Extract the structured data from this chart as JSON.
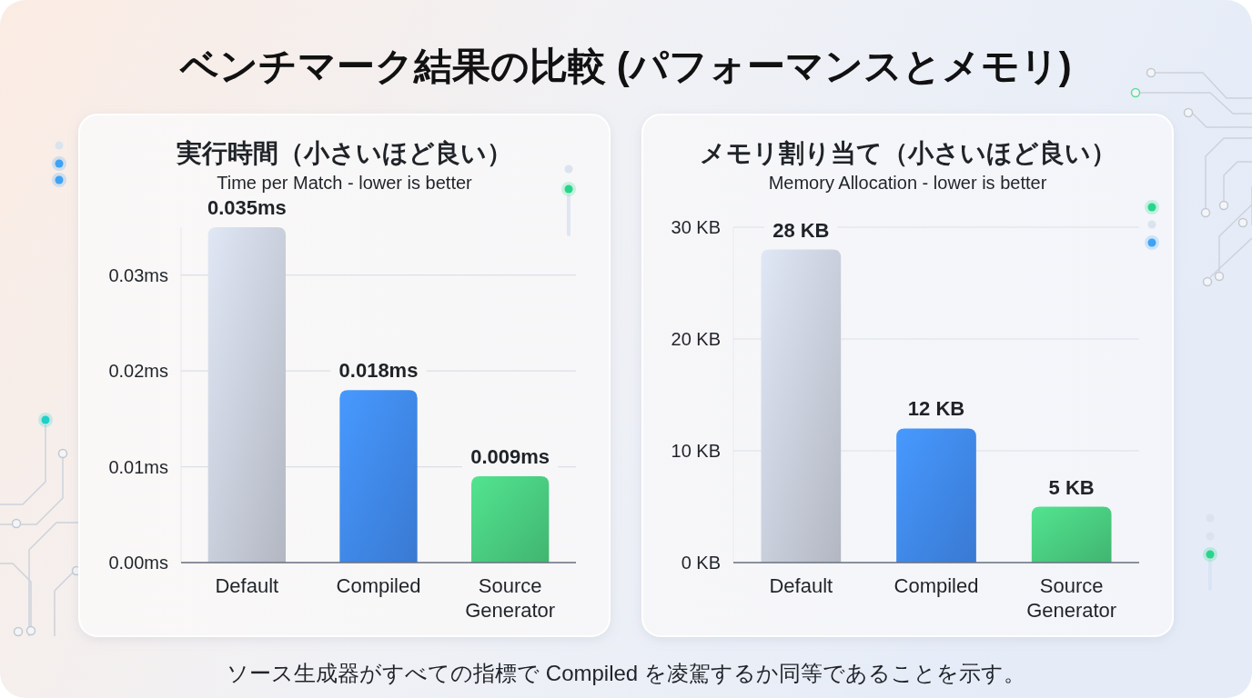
{
  "chart_data": [
    {
      "type": "other",
      "title": "ベンチマーク結果の比較 (パフォーマンスとメモリ)",
      "annotations": [
        "ソース生成器がすべての指標で Compiled を凌駕するか同等であることを示す。"
      ]
    },
    {
      "type": "bar",
      "title": "実行時間（小さいほど良い）",
      "subtitle": "Time per Match - lower is better",
      "categories": [
        "Default",
        "Compiled",
        "Source Generator"
      ],
      "values": [
        0.035,
        0.018,
        0.009
      ],
      "colors": [
        "#c6ccd8",
        "#3f87ea",
        "#48c97e"
      ],
      "value_labels": [
        "0.035ms",
        "0.018ms",
        "0.009ms"
      ],
      "ylim": [
        0,
        0.035
      ],
      "yticks": [
        {
          "value": 0,
          "label": "0.00ms"
        },
        {
          "value": 0.01,
          "label": "0.01ms"
        },
        {
          "value": 0.02,
          "label": "0.02ms"
        },
        {
          "value": 0.03,
          "label": "0.03ms"
        }
      ],
      "grid": "y"
    },
    {
      "type": "bar",
      "title": "メモリ割り当て（小さいほど良い）",
      "subtitle": "Memory Allocation - lower is better",
      "categories": [
        "Default",
        "Compiled",
        "Source Generator"
      ],
      "values": [
        28,
        12,
        5
      ],
      "colors": [
        "#c6ccd8",
        "#3f87ea",
        "#48c97e"
      ],
      "value_labels": [
        "28 KB",
        "12 KB",
        "5 KB"
      ],
      "ylim": [
        0,
        30
      ],
      "yticks": [
        {
          "value": 0,
          "label": "0 KB"
        },
        {
          "value": 10,
          "label": "10 KB"
        },
        {
          "value": 20,
          "label": "20 KB"
        },
        {
          "value": 30,
          "label": "30 KB"
        }
      ],
      "grid": "y"
    }
  ]
}
